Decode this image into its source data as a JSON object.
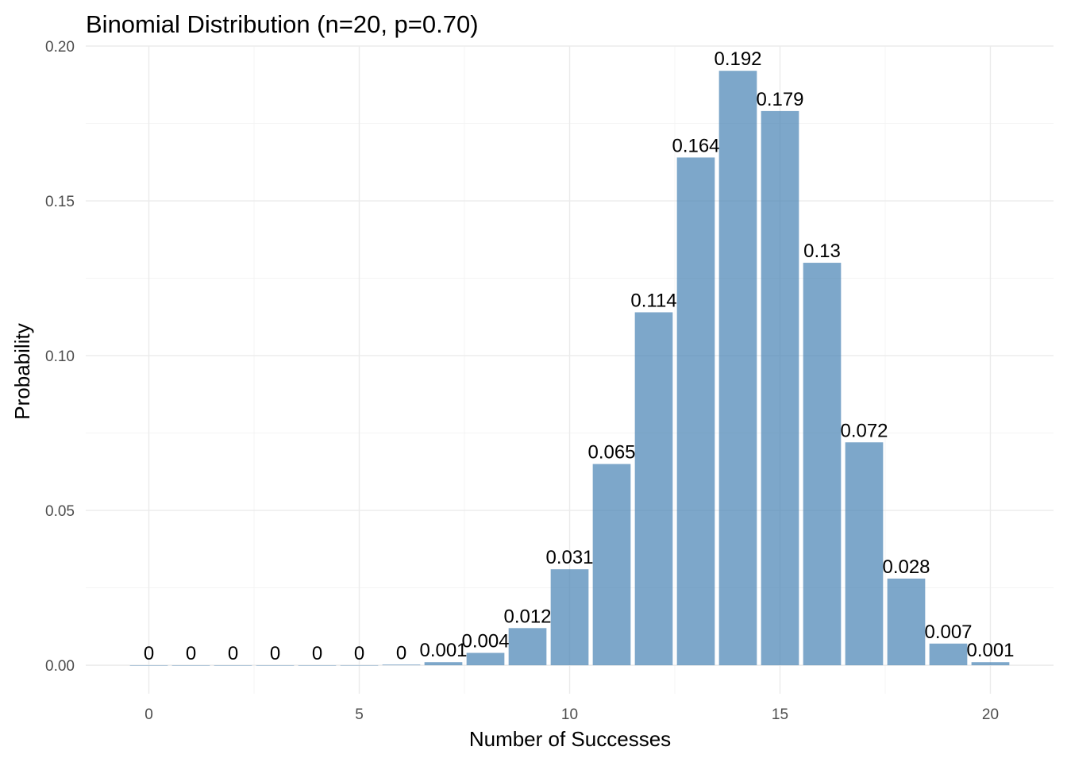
{
  "chart_data": {
    "type": "bar",
    "title": "Binomial Distribution (n=20, p=0.70)",
    "xlabel": "Number of Successes",
    "ylabel": "Probability",
    "x": [
      0,
      1,
      2,
      3,
      4,
      5,
      6,
      7,
      8,
      9,
      10,
      11,
      12,
      13,
      14,
      15,
      16,
      17,
      18,
      19,
      20
    ],
    "values": [
      0.0,
      0.0,
      0.0,
      0.0,
      0.0,
      4e-05,
      0.0002,
      0.001,
      0.004,
      0.012,
      0.031,
      0.065,
      0.114,
      0.164,
      0.192,
      0.179,
      0.13,
      0.072,
      0.028,
      0.007,
      0.001
    ],
    "labels": [
      "0",
      "0",
      "0",
      "0",
      "0",
      "0",
      "0",
      "0.001",
      "0.004",
      "0.012",
      "0.031",
      "0.065",
      "0.114",
      "0.164",
      "0.192",
      "0.179",
      "0.13",
      "0.072",
      "0.028",
      "0.007",
      "0.001"
    ],
    "xlim": [
      -1.5,
      21.5
    ],
    "ylim": [
      -0.0092,
      0.2
    ],
    "x_ticks": [
      0,
      5,
      10,
      15,
      20
    ],
    "x_tick_labels": [
      "0",
      "5",
      "10",
      "15",
      "20"
    ],
    "y_ticks": [
      0.0,
      0.05,
      0.1,
      0.15,
      0.2
    ],
    "y_tick_labels": [
      "0.00",
      "0.05",
      "0.10",
      "0.15",
      "0.20"
    ],
    "grid": true,
    "bar_color": "#4682b4",
    "legend": "none"
  }
}
